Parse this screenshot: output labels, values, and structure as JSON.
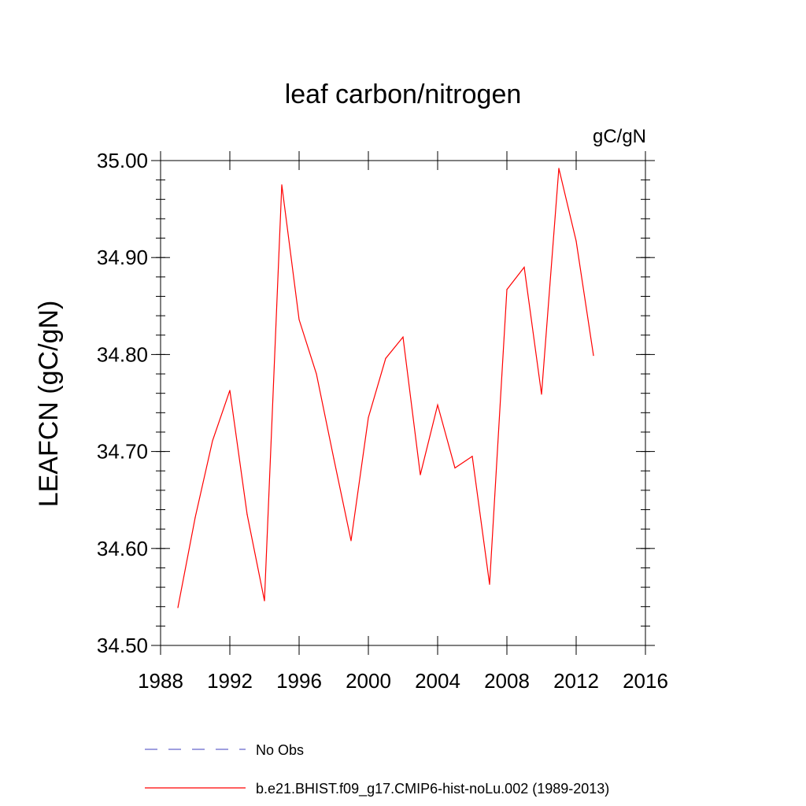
{
  "chart_data": {
    "type": "line",
    "title": "leaf carbon/nitrogen",
    "units_label": "gC/gN",
    "ylabel": "LEAFCN  (gC/gN)",
    "xlabel": "",
    "xlim": [
      1988,
      2016
    ],
    "ylim": [
      34.5,
      35.0
    ],
    "x_ticks": [
      "1988",
      "1992",
      "1996",
      "2000",
      "2004",
      "2008",
      "2012",
      "2016"
    ],
    "y_ticks": [
      "34.50",
      "34.60",
      "34.70",
      "34.80",
      "34.90",
      "35.00"
    ],
    "grid": false,
    "legend_position": "bottom",
    "series": [
      {
        "name": "No Obs",
        "color": "#6666cc",
        "dash": "dashed",
        "x": [],
        "y": []
      },
      {
        "name": "b.e21.BHIST.f09_g17.CMIP6-hist-noLu.002 (1989-2013)",
        "color": "#ff0000",
        "dash": "solid",
        "x": [
          1989,
          1990,
          1991,
          1992,
          1993,
          1994,
          1995,
          1996,
          1997,
          1998,
          1999,
          2000,
          2001,
          2002,
          2003,
          2004,
          2005,
          2006,
          2007,
          2008,
          2009,
          2010,
          2011,
          2012,
          2013
        ],
        "y": [
          34.539,
          34.632,
          34.711,
          34.763,
          34.635,
          34.546,
          34.975,
          34.836,
          34.78,
          34.693,
          34.608,
          34.735,
          34.796,
          34.818,
          34.676,
          34.748,
          34.683,
          34.695,
          34.563,
          34.867,
          34.89,
          34.759,
          34.992,
          34.917,
          34.799
        ]
      }
    ]
  }
}
